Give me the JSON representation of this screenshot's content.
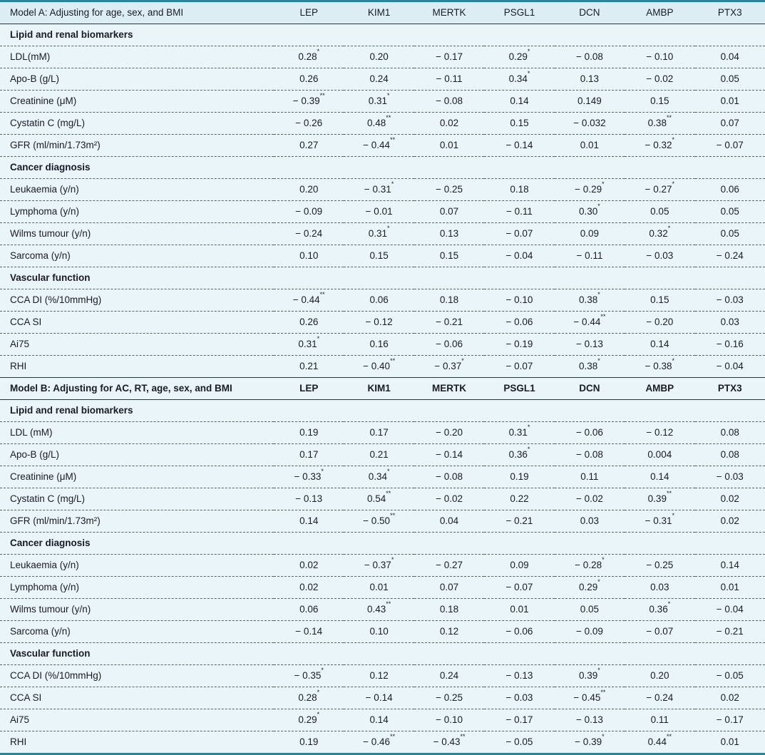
{
  "colors": {
    "bg": "#e9f5f8",
    "header-bg": "#dceef3",
    "rule-strong": "#2a8496",
    "rule-thin": "#26343d",
    "dash": "#53646e",
    "text": "#1b1b28"
  },
  "columns": [
    "LEP",
    "KIM1",
    "MERTK",
    "PSGL1",
    "DCN",
    "AMBP",
    "PTX3"
  ],
  "panels": [
    {
      "title": "Model A: Adjusting for age, sex, and BMI",
      "sections": [
        {
          "title": "Lipid and renal biomarkers",
          "rows": [
            {
              "label": "LDL(mM)",
              "values": [
                "0.28*",
                "0.20",
                "− 0.17",
                "0.29*",
                "− 0.08",
                "− 0.10",
                "0.04"
              ]
            },
            {
              "label": "Apo-B (g/L)",
              "values": [
                "0.26",
                "0.24",
                "− 0.11",
                "0.34*",
                "0.13",
                "− 0.02",
                "0.05"
              ]
            },
            {
              "label": "Creatinine (μM)",
              "values": [
                "− 0.39**",
                "0.31*",
                "− 0.08",
                "0.14",
                "0.149",
                "0.15",
                "0.01"
              ]
            },
            {
              "label": "Cystatin C (mg/L)",
              "values": [
                "− 0.26",
                "0.48**",
                "0.02",
                "0.15",
                "− 0.032",
                "0.38**",
                "0.07"
              ]
            },
            {
              "label": "GFR (ml/min/1.73m²)",
              "values": [
                "0.27",
                "− 0.44**",
                "0.01",
                "− 0.14",
                "0.01",
                "− 0.32*",
                "− 0.07"
              ]
            }
          ]
        },
        {
          "title": "Cancer diagnosis",
          "rows": [
            {
              "label": "Leukaemia (y/n)",
              "values": [
                "0.20",
                "− 0.31*",
                "− 0.25",
                "0.18",
                "− 0.29*",
                "− 0.27*",
                "0.06"
              ]
            },
            {
              "label": "Lymphoma (y/n)",
              "values": [
                "− 0.09",
                "− 0.01",
                "0.07",
                "− 0.11",
                "0.30*",
                "0.05",
                "0.05"
              ]
            },
            {
              "label": "Wilms tumour (y/n)",
              "values": [
                "− 0.24",
                "0.31*",
                "0.13",
                "− 0.07",
                "0.09",
                "0.32*",
                "0.05"
              ]
            },
            {
              "label": "Sarcoma (y/n)",
              "values": [
                "0.10",
                "0.15",
                "0.15",
                "− 0.04",
                "− 0.11",
                "− 0.03",
                "− 0.24"
              ]
            }
          ]
        },
        {
          "title": "Vascular function",
          "rows": [
            {
              "label": "CCA DI (%/10mmHg)",
              "values": [
                "− 0.44**",
                "0.06",
                "0.18",
                "− 0.10",
                "0.38*",
                "0.15",
                "− 0.03"
              ]
            },
            {
              "label": "CCA SI",
              "values": [
                "0.26",
                "− 0.12",
                "− 0.21",
                "− 0.06",
                "− 0.44**",
                "− 0.20",
                "0.03"
              ]
            },
            {
              "label": "Ai75",
              "values": [
                "0.31*",
                "0.16",
                "− 0.06",
                "− 0.19",
                "− 0.13",
                "0.14",
                "− 0.16"
              ]
            },
            {
              "label": "RHI",
              "values": [
                "0.21",
                "− 0.40**",
                "− 0.37*",
                "− 0.07",
                "0.38*",
                "− 0.38*",
                "− 0.04"
              ]
            }
          ]
        }
      ]
    },
    {
      "title": "Model B: Adjusting for AC, RT, age, sex, and BMI",
      "sections": [
        {
          "title": "Lipid and renal biomarkers",
          "rows": [
            {
              "label": "LDL (mM)",
              "values": [
                "0.19",
                "0.17",
                "− 0.20",
                "0.31*",
                "− 0.06",
                "− 0.12",
                "0.08"
              ]
            },
            {
              "label": "Apo-B (g/L)",
              "values": [
                "0.17",
                "0.21",
                "− 0.14",
                "0.36*",
                "− 0.08",
                "0.004",
                "0.08"
              ]
            },
            {
              "label": "Creatinine (μM)",
              "values": [
                "− 0.33*",
                "0.34*",
                "− 0.08",
                "0.19",
                "0.11",
                "0.14",
                "− 0.03"
              ]
            },
            {
              "label": "Cystatin C (mg/L)",
              "values": [
                "− 0.13",
                "0.54**",
                "− 0.02",
                "0.22",
                "− 0.02",
                "0.39**",
                "0.02"
              ]
            },
            {
              "label": "GFR (ml/min/1.73m²)",
              "values": [
                "0.14",
                "− 0.50**",
                "0.04",
                "− 0.21",
                "0.03",
                "− 0.31*",
                "0.02"
              ]
            }
          ]
        },
        {
          "title": "Cancer diagnosis",
          "rows": [
            {
              "label": "Leukaemia (y/n)",
              "values": [
                "0.02",
                "− 0.37*",
                "− 0.27",
                "0.09",
                "− 0.28*",
                "− 0.25",
                "0.14"
              ]
            },
            {
              "label": "Lymphoma (y/n)",
              "values": [
                "0.02",
                "0.01",
                "0.07",
                "− 0.07",
                "0.29*",
                "0.03",
                "0.01"
              ]
            },
            {
              "label": "Wilms tumour (y/n)",
              "values": [
                "0.06",
                "0.43**",
                "0.18",
                "0.01",
                "0.05",
                "0.36*",
                "− 0.04"
              ]
            },
            {
              "label": "Sarcoma (y/n)",
              "values": [
                "− 0.14",
                "0.10",
                "0.12",
                "− 0.06",
                "− 0.09",
                "− 0.07",
                "− 0.21"
              ]
            }
          ]
        },
        {
          "title": "Vascular function",
          "rows": [
            {
              "label": "CCA DI (%/10mmHg)",
              "values": [
                "− 0.35*",
                "0.12",
                "0.24",
                "− 0.13",
                "0.39*",
                "0.20",
                "− 0.05"
              ]
            },
            {
              "label": "CCA SI",
              "values": [
                "0.28*",
                "− 0.14",
                "− 0.25",
                "− 0.03",
                "− 0.45**",
                "− 0.24",
                "0.02"
              ]
            },
            {
              "label": "Ai75",
              "values": [
                "0.29*",
                "0.14",
                "− 0.10",
                "− 0.17",
                "− 0.13",
                "0.11",
                "− 0.17"
              ]
            },
            {
              "label": "RHI",
              "values": [
                "0.19",
                "− 0.46**",
                "− 0.43**",
                "− 0.05",
                "− 0.39*",
                "0.44**",
                "0.01"
              ]
            }
          ]
        }
      ]
    }
  ]
}
